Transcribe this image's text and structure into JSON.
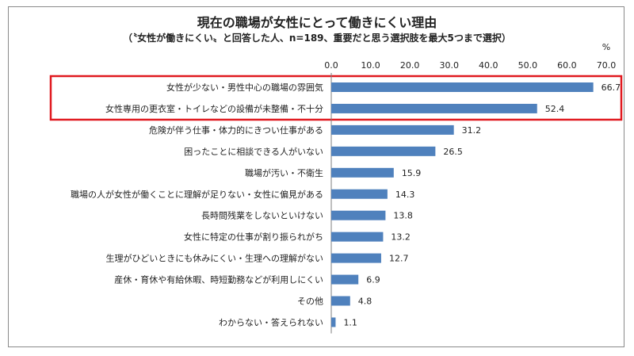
{
  "chart_data": {
    "type": "bar",
    "orientation": "horizontal",
    "title": "現在の職場が女性にとって働きにくい理由",
    "subtitle": "（〝女性が働きにくい〟と回答した人、n=189、重要だと思う選択肢を最大5つまで選択）",
    "unit": "%",
    "xlim": [
      0,
      70
    ],
    "ticks": [
      "0.0",
      "10.0",
      "20.0",
      "30.0",
      "40.0",
      "50.0",
      "60.0",
      "70.0"
    ],
    "tick_values": [
      0,
      10,
      20,
      30,
      40,
      50,
      60,
      70
    ],
    "grid": false,
    "bar_color": "#4f81bd",
    "highlight_color": "#e0191f",
    "highlighted_categories": [
      0,
      1
    ],
    "categories": [
      "女性が少ない・男性中心の職場の雰囲気",
      "女性専用の更衣室・トイレなどの設備が未整備・不十分",
      "危険が伴う仕事・体力的にきつい仕事がある",
      "困ったことに相談できる人がいない",
      "職場が汚い・不衛生",
      "職場の人が女性が働くことに理解が足りない・女性に偏見がある",
      "長時間残業をしないといけない",
      "女性に特定の仕事が割り振られがち",
      "生理がひどいときにも休みにくい・生理への理解がない",
      "産休・育休や有給休暇、時短勤務などが利用しにくい",
      "その他",
      "わからない・答えられない"
    ],
    "values": [
      66.7,
      52.4,
      31.2,
      26.5,
      15.9,
      14.3,
      13.8,
      13.2,
      12.7,
      6.9,
      4.8,
      1.1
    ],
    "value_labels": [
      "66.7",
      "52.4",
      "31.2",
      "26.5",
      "15.9",
      "14.3",
      "13.8",
      "13.2",
      "12.7",
      "6.9",
      "4.8",
      "1.1"
    ]
  }
}
